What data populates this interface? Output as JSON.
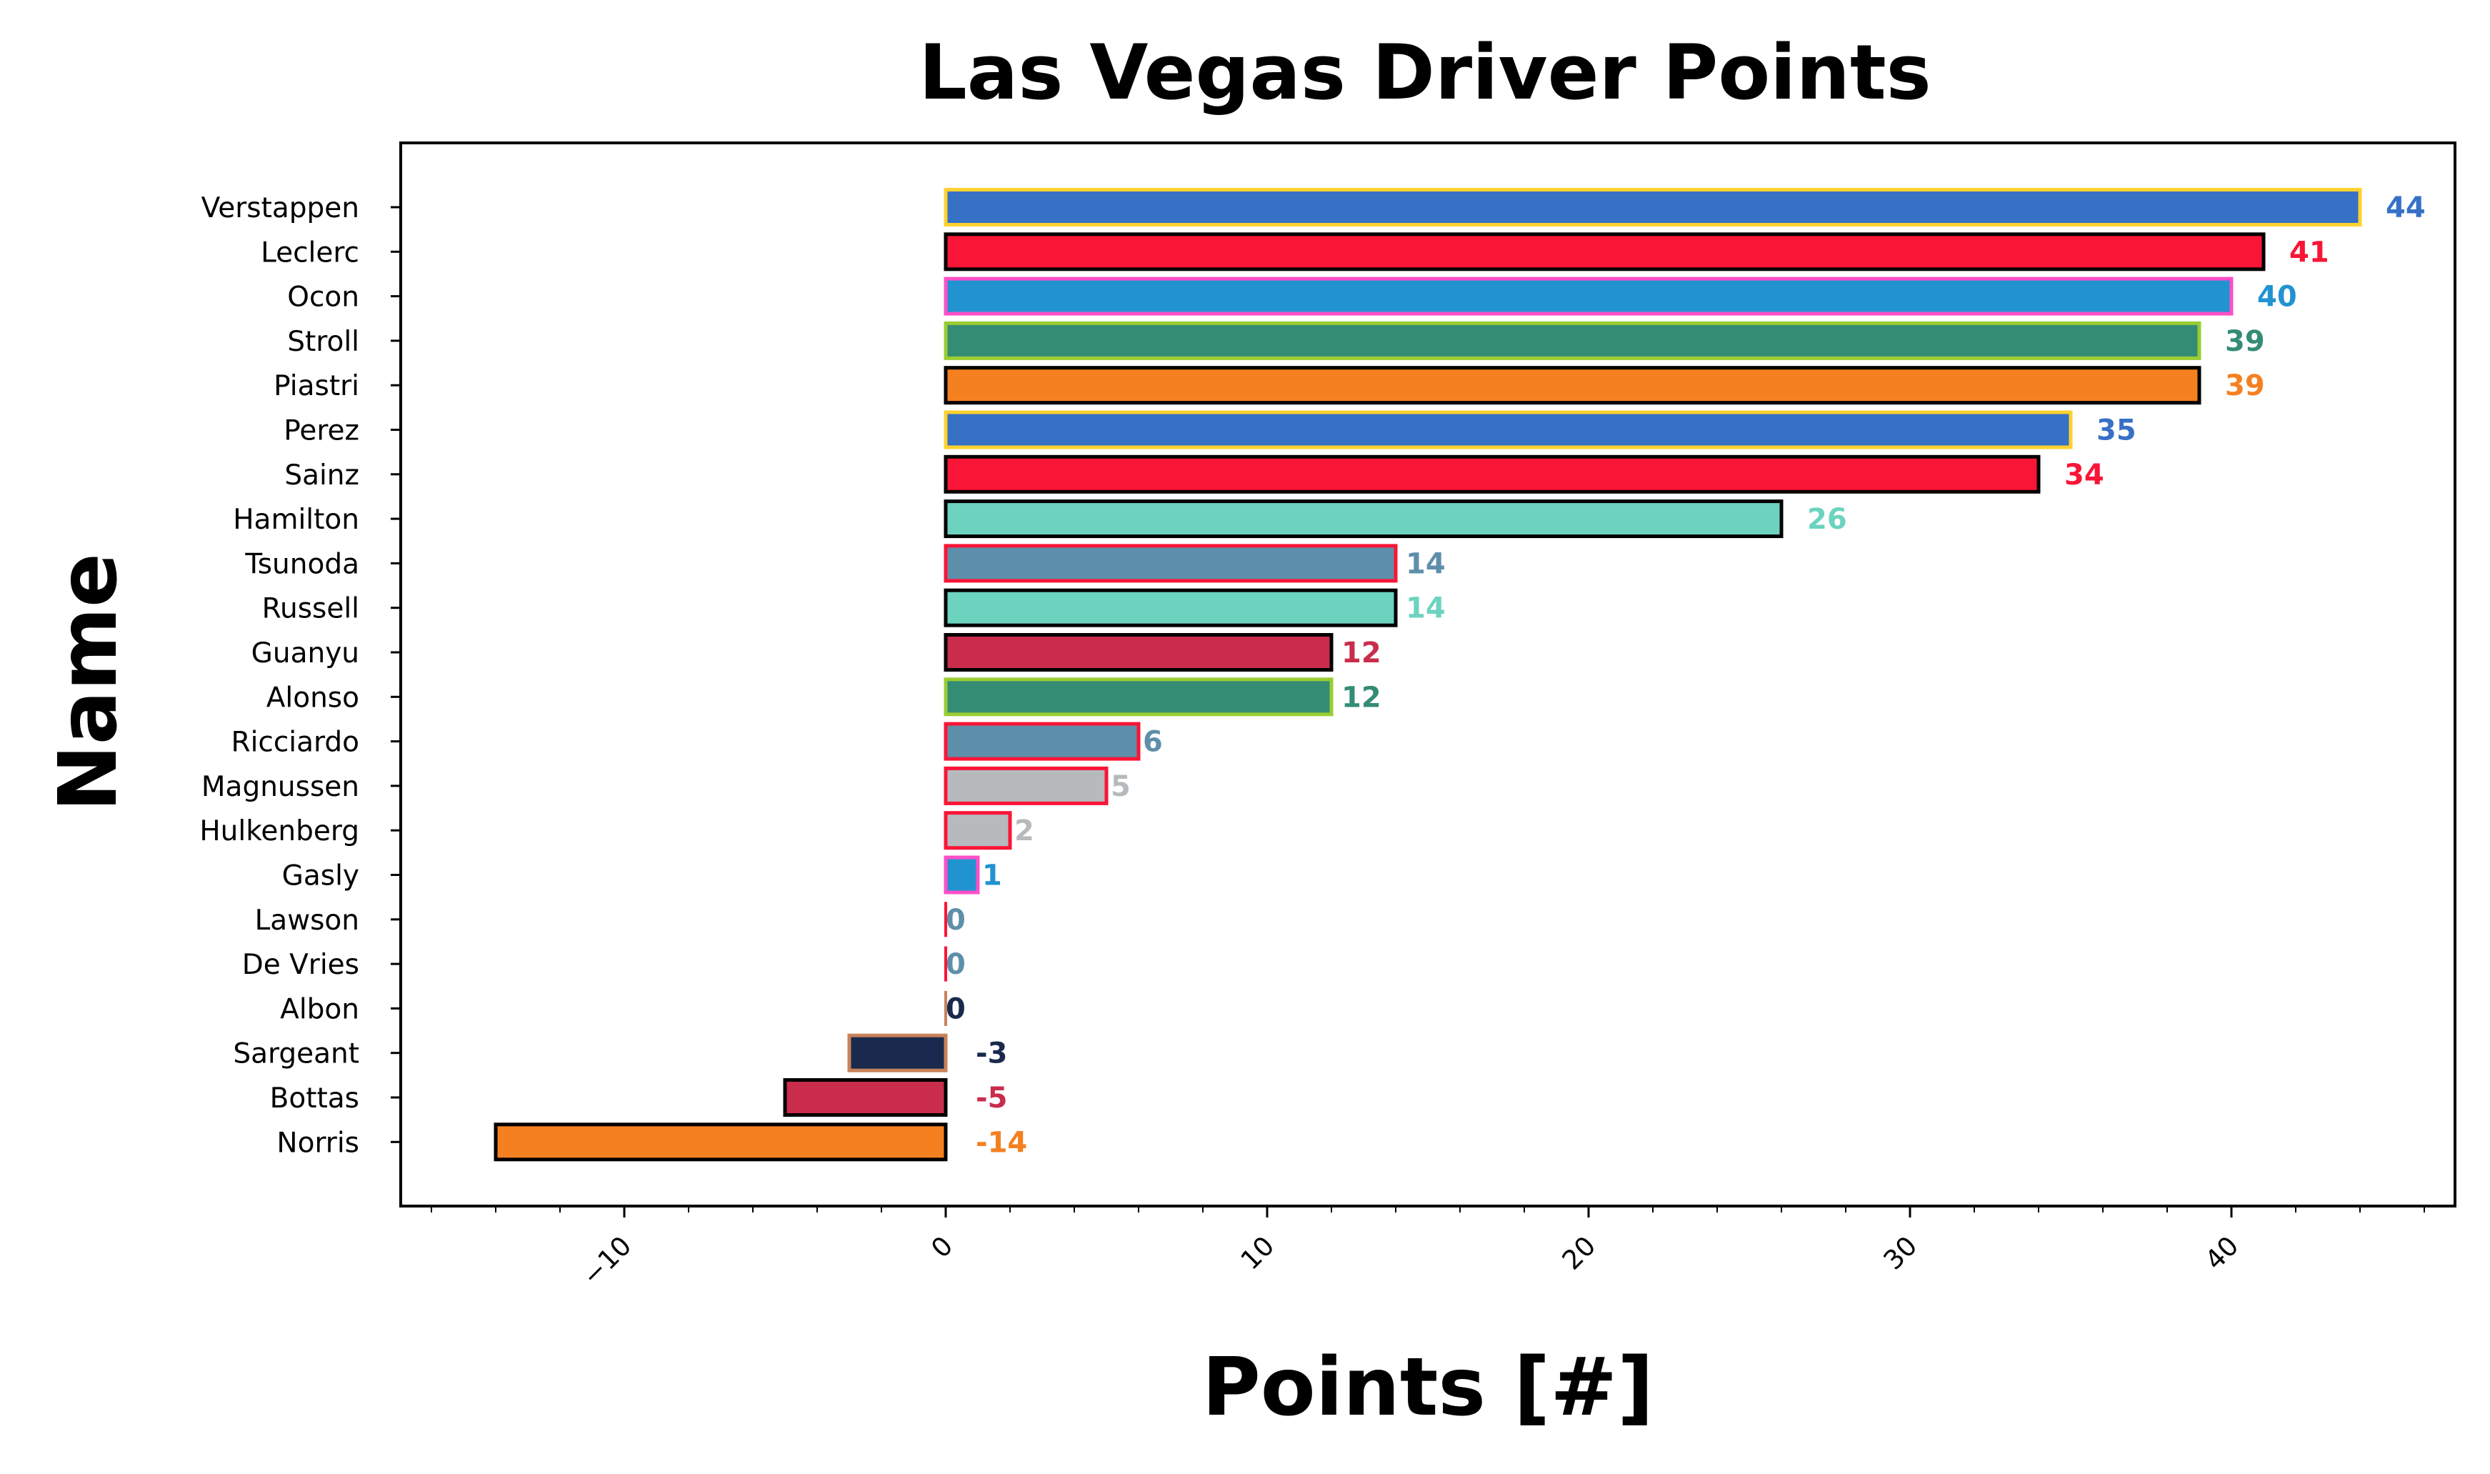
{
  "chart_data": {
    "type": "bar",
    "orientation": "horizontal",
    "title": "Las Vegas Driver Points",
    "xlabel": "Points [#]",
    "ylabel": "Name",
    "xlim": [
      -17,
      47
    ],
    "xticks": [
      -10,
      0,
      10,
      20,
      30,
      40
    ],
    "xtick_labels": [
      "−10",
      "0",
      "10",
      "20",
      "30",
      "40"
    ],
    "grid": false,
    "bars": [
      {
        "name": "Verstappen",
        "value": 44,
        "label": "44",
        "fill": "#3671C6",
        "edge": "#FFD12E",
        "label_color": "#3671C6"
      },
      {
        "name": "Leclerc",
        "value": 41,
        "label": "41",
        "fill": "#F91536",
        "edge": "#000000",
        "label_color": "#F91536"
      },
      {
        "name": "Ocon",
        "value": 40,
        "label": "40",
        "fill": "#2293D1",
        "edge": "#FF4FC7",
        "label_color": "#2293D1"
      },
      {
        "name": "Stroll",
        "value": 39,
        "label": "39",
        "fill": "#358C75",
        "edge": "#9ACD32",
        "label_color": "#358C75"
      },
      {
        "name": "Piastri",
        "value": 39,
        "label": "39",
        "fill": "#F58020",
        "edge": "#000000",
        "label_color": "#F58020"
      },
      {
        "name": "Perez",
        "value": 35,
        "label": "35",
        "fill": "#3671C6",
        "edge": "#FFD12E",
        "label_color": "#3671C6"
      },
      {
        "name": "Sainz",
        "value": 34,
        "label": "34",
        "fill": "#F91536",
        "edge": "#000000",
        "label_color": "#F91536"
      },
      {
        "name": "Hamilton",
        "value": 26,
        "label": "26",
        "fill": "#6CD3BF",
        "edge": "#000000",
        "label_color": "#6CD3BF"
      },
      {
        "name": "Tsunoda",
        "value": 14,
        "label": "14",
        "fill": "#5E8FAA",
        "edge": "#F91536",
        "label_color": "#5E8FAA"
      },
      {
        "name": "Russell",
        "value": 14,
        "label": "14",
        "fill": "#6CD3BF",
        "edge": "#000000",
        "label_color": "#6CD3BF"
      },
      {
        "name": "Guanyu",
        "value": 12,
        "label": "12",
        "fill": "#C92D4B",
        "edge": "#000000",
        "label_color": "#C92D4B"
      },
      {
        "name": "Alonso",
        "value": 12,
        "label": "12",
        "fill": "#358C75",
        "edge": "#9ACD32",
        "label_color": "#358C75"
      },
      {
        "name": "Ricciardo",
        "value": 6,
        "label": "6",
        "fill": "#5E8FAA",
        "edge": "#F91536",
        "label_color": "#5E8FAA"
      },
      {
        "name": "Magnussen",
        "value": 5,
        "label": "5",
        "fill": "#B6BABD",
        "edge": "#F91536",
        "label_color": "#B6BABD"
      },
      {
        "name": "Hulkenberg",
        "value": 2,
        "label": "2",
        "fill": "#B6BABD",
        "edge": "#F91536",
        "label_color": "#B6BABD"
      },
      {
        "name": "Gasly",
        "value": 1,
        "label": "1",
        "fill": "#2293D1",
        "edge": "#FF4FC7",
        "label_color": "#2293D1"
      },
      {
        "name": "Lawson",
        "value": 0,
        "label": "0",
        "fill": "#5E8FAA",
        "edge": "#F91536",
        "label_color": "#5E8FAA"
      },
      {
        "name": "De Vries",
        "value": 0,
        "label": "0",
        "fill": "#5E8FAA",
        "edge": "#F91536",
        "label_color": "#5E8FAA"
      },
      {
        "name": "Albon",
        "value": 0,
        "label": "0",
        "fill": "#1A2A4E",
        "edge": "#C8825A",
        "label_color": "#1A2A4E"
      },
      {
        "name": "Sargeant",
        "value": -3,
        "label": "-3",
        "fill": "#1A2A4E",
        "edge": "#C8825A",
        "label_color": "#1A2A4E"
      },
      {
        "name": "Bottas",
        "value": -5,
        "label": "-5",
        "fill": "#C92D4B",
        "edge": "#000000",
        "label_color": "#C92D4B"
      },
      {
        "name": "Norris",
        "value": -14,
        "label": "-14",
        "fill": "#F58020",
        "edge": "#000000",
        "label_color": "#F58020"
      }
    ]
  }
}
